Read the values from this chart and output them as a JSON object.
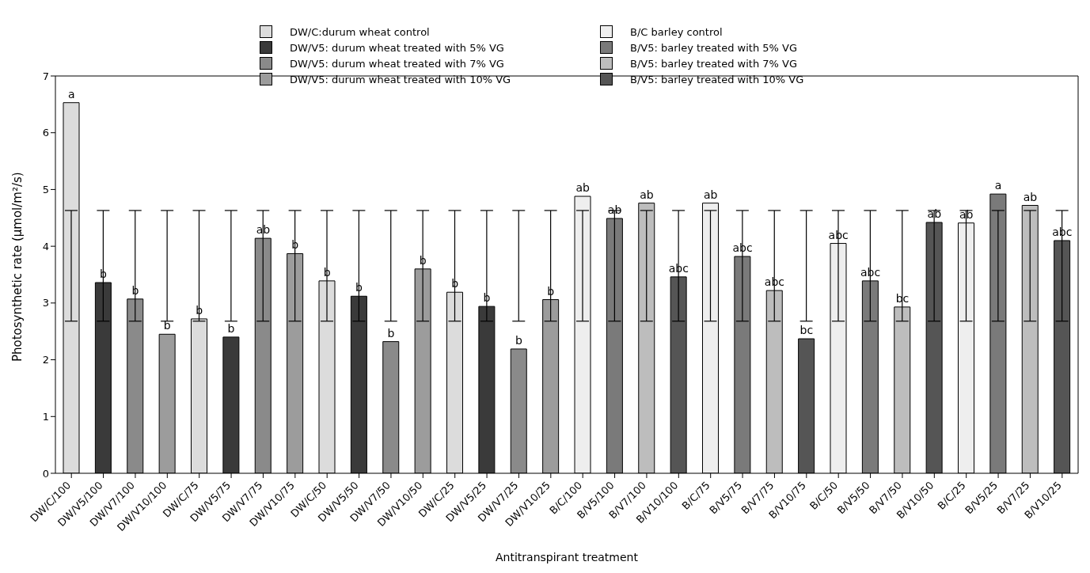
{
  "chart_data": {
    "type": "bar",
    "xlabel": "Antitranspirant treatment",
    "ylabel": "Photosynthetic rate (µmol/m²/s)",
    "categories": [
      "DW/C/100",
      "DW/V5/100",
      "DW/V7/100",
      "DW/V10/100",
      "DW/C/75",
      "DW/V5/75",
      "DW/V7/75",
      "DW/V10/75",
      "DW/C/50",
      "DW/V5/50",
      "DW/V7/50",
      "DW/V10/50",
      "DW/C/25",
      "DW/V5/25",
      "DW/V7/25",
      "DW/V10/25",
      "B/C/100",
      "B/V5/100",
      "B/V7/100",
      "B/V10/100",
      "B/C/75",
      "B/V5/75",
      "B/V7/75",
      "B/V10/75",
      "B/C/50",
      "B/V5/50",
      "B/V7/50",
      "B/V10/50",
      "B/C/25",
      "B/V5/25",
      "B/V7/25",
      "B/V10/25"
    ],
    "stacked": true,
    "series": [
      {
        "name": "DW/C:durum wheat control",
        "color": "#dcdcdc",
        "values": [
          6.53,
          null,
          null,
          null,
          2.72,
          null,
          null,
          null,
          3.39,
          null,
          null,
          null,
          3.19,
          null,
          null,
          null,
          null,
          null,
          null,
          null,
          null,
          null,
          null,
          null,
          null,
          null,
          null,
          null,
          null,
          null,
          null,
          null
        ],
        "errors": [
          [
            2.68,
            4.63
          ],
          null,
          null,
          null,
          [
            2.68,
            4.63
          ],
          null,
          null,
          null,
          [
            2.68,
            4.63
          ],
          null,
          null,
          null,
          [
            2.68,
            4.63
          ],
          null,
          null,
          null,
          null,
          null,
          null,
          null,
          null,
          null,
          null,
          null,
          null,
          null,
          null,
          null,
          null,
          null,
          null,
          null
        ]
      },
      {
        "name": "DW/V5: durum wheat treated with 5% VG",
        "color": "#3a3a3a",
        "values": [
          null,
          3.36,
          null,
          null,
          null,
          2.4,
          null,
          null,
          null,
          3.12,
          null,
          null,
          null,
          2.94,
          null,
          null,
          null,
          null,
          null,
          null,
          null,
          null,
          null,
          null,
          null,
          null,
          null,
          null,
          null,
          null,
          null,
          null
        ],
        "errors": [
          null,
          [
            2.68,
            4.63
          ],
          null,
          null,
          null,
          [
            2.68,
            4.63
          ],
          null,
          null,
          null,
          [
            2.68,
            4.63
          ],
          null,
          null,
          null,
          [
            2.68,
            4.63
          ],
          null,
          null,
          null,
          null,
          null,
          null,
          null,
          null,
          null,
          null,
          null,
          null,
          null,
          null,
          null,
          null,
          null,
          null
        ]
      },
      {
        "name": "DW/V5: durum wheat treated with 7% VG",
        "color": "#8a8a8a",
        "values": [
          null,
          null,
          3.07,
          null,
          null,
          null,
          4.14,
          null,
          null,
          null,
          2.32,
          null,
          null,
          null,
          2.19,
          null,
          null,
          null,
          null,
          null,
          null,
          null,
          null,
          null,
          null,
          null,
          null,
          null,
          null,
          null,
          null,
          null
        ],
        "errors": [
          null,
          null,
          [
            2.68,
            4.63
          ],
          null,
          null,
          null,
          [
            2.68,
            4.63
          ],
          null,
          null,
          null,
          [
            2.68,
            4.63
          ],
          null,
          null,
          null,
          [
            2.68,
            4.63
          ],
          null,
          null,
          null,
          null,
          null,
          null,
          null,
          null,
          null,
          null,
          null,
          null,
          null,
          null,
          null,
          null,
          null
        ]
      },
      {
        "name": "DW/V5: durum wheat treated with 10% VG",
        "color": "#9c9c9c",
        "values": [
          null,
          null,
          null,
          2.45,
          null,
          null,
          null,
          3.87,
          null,
          null,
          null,
          3.6,
          null,
          null,
          null,
          3.06,
          null,
          null,
          null,
          null,
          null,
          null,
          null,
          null,
          null,
          null,
          null,
          null,
          null,
          null,
          null,
          null
        ],
        "errors": [
          null,
          null,
          null,
          [
            2.68,
            4.63
          ],
          null,
          null,
          null,
          [
            2.68,
            4.63
          ],
          null,
          null,
          null,
          [
            2.68,
            4.63
          ],
          null,
          null,
          null,
          [
            2.68,
            4.63
          ],
          null,
          null,
          null,
          null,
          null,
          null,
          null,
          null,
          null,
          null,
          null,
          null,
          null,
          null,
          null,
          null
        ]
      },
      {
        "name": "B/C barley control",
        "color": "#eeeeee",
        "values": [
          null,
          null,
          null,
          null,
          null,
          null,
          null,
          null,
          null,
          null,
          null,
          null,
          null,
          null,
          null,
          null,
          4.88,
          null,
          null,
          null,
          4.76,
          null,
          null,
          null,
          4.05,
          null,
          null,
          null,
          4.41,
          null,
          null,
          null
        ],
        "errors": [
          null,
          null,
          null,
          null,
          null,
          null,
          null,
          null,
          null,
          null,
          null,
          null,
          null,
          null,
          null,
          null,
          [
            2.68,
            4.63
          ],
          null,
          null,
          null,
          [
            2.68,
            4.63
          ],
          null,
          null,
          null,
          [
            2.68,
            4.63
          ],
          null,
          null,
          null,
          [
            2.68,
            4.63
          ],
          null,
          null,
          null
        ]
      },
      {
        "name": "B/V5: barley treated with 5% VG",
        "color": "#7a7a7a",
        "values": [
          null,
          null,
          null,
          null,
          null,
          null,
          null,
          null,
          null,
          null,
          null,
          null,
          null,
          null,
          null,
          null,
          null,
          4.49,
          null,
          null,
          null,
          3.82,
          null,
          null,
          null,
          3.39,
          null,
          null,
          null,
          4.92,
          null,
          null
        ],
        "errors": [
          null,
          null,
          null,
          null,
          null,
          null,
          null,
          null,
          null,
          null,
          null,
          null,
          null,
          null,
          null,
          null,
          null,
          [
            2.68,
            4.63
          ],
          null,
          null,
          null,
          [
            2.68,
            4.63
          ],
          null,
          null,
          null,
          [
            2.68,
            4.63
          ],
          null,
          null,
          null,
          [
            2.68,
            4.63
          ],
          null,
          null
        ]
      },
      {
        "name": "B/V5: barley treated with 7% VG",
        "color": "#bdbdbd",
        "values": [
          null,
          null,
          null,
          null,
          null,
          null,
          null,
          null,
          null,
          null,
          null,
          null,
          null,
          null,
          null,
          null,
          null,
          null,
          4.76,
          null,
          null,
          null,
          3.22,
          null,
          null,
          null,
          2.93,
          null,
          null,
          null,
          4.72,
          null
        ],
        "errors": [
          null,
          null,
          null,
          null,
          null,
          null,
          null,
          null,
          null,
          null,
          null,
          null,
          null,
          null,
          null,
          null,
          null,
          null,
          [
            2.68,
            4.63
          ],
          null,
          null,
          null,
          [
            2.68,
            4.63
          ],
          null,
          null,
          null,
          [
            2.68,
            4.63
          ],
          null,
          null,
          null,
          [
            2.68,
            4.63
          ],
          null
        ]
      },
      {
        "name": "B/V5: barley treated with 10% VG",
        "color": "#555555",
        "values": [
          null,
          null,
          null,
          null,
          null,
          null,
          null,
          null,
          null,
          null,
          null,
          null,
          null,
          null,
          null,
          null,
          null,
          null,
          null,
          3.46,
          null,
          null,
          null,
          2.37,
          null,
          null,
          null,
          4.42,
          null,
          null,
          null,
          4.1
        ],
        "errors": [
          null,
          null,
          null,
          null,
          null,
          null,
          null,
          null,
          null,
          null,
          null,
          null,
          null,
          null,
          null,
          null,
          null,
          null,
          null,
          [
            2.68,
            4.63
          ],
          null,
          null,
          null,
          [
            2.68,
            4.63
          ],
          null,
          null,
          null,
          [
            2.68,
            4.63
          ],
          null,
          null,
          null,
          [
            2.68,
            4.63
          ]
        ]
      }
    ],
    "annotations": [
      {
        "text": "a",
        "x": "DW/C/100",
        "y": 6.53
      },
      {
        "text": "b",
        "x": "DW/V5/100",
        "y": 3.36
      },
      {
        "text": "b",
        "x": "DW/V7/100",
        "y": 3.07
      },
      {
        "text": "b",
        "x": "DW/V10/100",
        "y": 2.45
      },
      {
        "text": "b",
        "x": "DW/C/75",
        "y": 2.72
      },
      {
        "text": "b",
        "x": "DW/V5/75",
        "y": 2.4
      },
      {
        "text": "ab",
        "x": "DW/V7/75",
        "y": 4.14
      },
      {
        "text": "b",
        "x": "DW/V10/75",
        "y": 3.87
      },
      {
        "text": "b",
        "x": "DW/C/50",
        "y": 3.39
      },
      {
        "text": "b",
        "x": "DW/V5/50",
        "y": 3.12
      },
      {
        "text": "b",
        "x": "DW/V7/50",
        "y": 2.32
      },
      {
        "text": "b",
        "x": "DW/V10/50",
        "y": 3.6
      },
      {
        "text": "b",
        "x": "DW/C/25",
        "y": 3.19
      },
      {
        "text": "b",
        "x": "DW/V5/25",
        "y": 2.94
      },
      {
        "text": "b",
        "x": "DW/V7/25",
        "y": 2.19
      },
      {
        "text": "b",
        "x": "DW/V10/25",
        "y": 3.06
      },
      {
        "text": "ab",
        "x": "B/C/100",
        "y": 4.88
      },
      {
        "text": "ab",
        "x": "B/V5/100",
        "y": 4.49
      },
      {
        "text": "ab",
        "x": "B/V7/100",
        "y": 4.76
      },
      {
        "text": "abc",
        "x": "B/V10/100",
        "y": 3.46
      },
      {
        "text": "ab",
        "x": "B/C/75",
        "y": 4.76
      },
      {
        "text": "abc",
        "x": "B/V5/75",
        "y": 3.82
      },
      {
        "text": "abc",
        "x": "B/V7/75",
        "y": 3.22
      },
      {
        "text": "bc",
        "x": "B/V10/75",
        "y": 2.37
      },
      {
        "text": "abc",
        "x": "B/C/50",
        "y": 4.05
      },
      {
        "text": "abc",
        "x": "B/V5/50",
        "y": 3.39
      },
      {
        "text": "bc",
        "x": "B/V7/50",
        "y": 2.93
      },
      {
        "text": "ab",
        "x": "B/V10/50",
        "y": 4.42
      },
      {
        "text": "ab",
        "x": "B/C/25",
        "y": 4.41
      },
      {
        "text": "a",
        "x": "B/V5/25",
        "y": 4.92
      },
      {
        "text": "ab",
        "x": "B/V7/25",
        "y": 4.72
      },
      {
        "text": "abc",
        "x": "B/V10/25",
        "y": 4.1
      }
    ],
    "ylim": [
      0,
      7
    ],
    "yticks": [
      0,
      1,
      2,
      3,
      4,
      5,
      6,
      7
    ],
    "grid": false,
    "legend": "top"
  }
}
